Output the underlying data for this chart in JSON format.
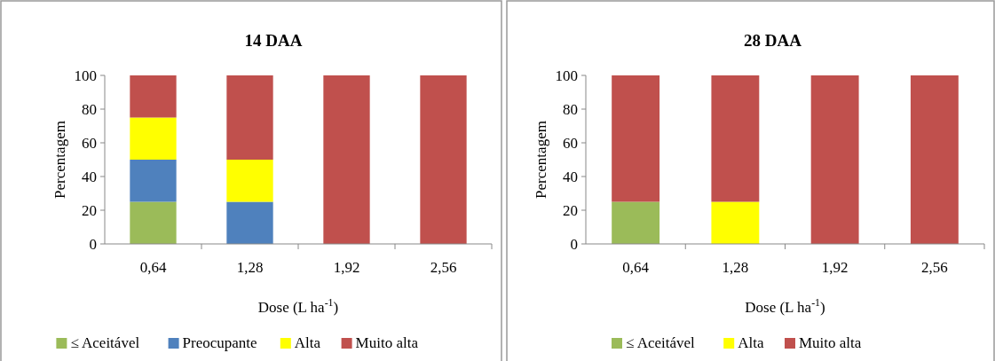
{
  "chart_data": [
    {
      "type": "bar",
      "title": "14 DAA",
      "categories": [
        "0,64",
        "1,28",
        "1,92",
        "2,56"
      ],
      "stacked": true,
      "xlabel": "Dose (L ha$^{-1}$)",
      "ylabel": "Percentagem",
      "ylim": [
        0,
        100
      ],
      "yticks": [
        0,
        20,
        40,
        60,
        80,
        100
      ],
      "legend": "bottom",
      "series": [
        {
          "name": "≤ Aceitável",
          "color": "#9bbb59",
          "values": [
            25,
            0,
            0,
            0
          ]
        },
        {
          "name": "Preocupante",
          "color": "#4f81bd",
          "values": [
            25,
            25,
            0,
            0
          ]
        },
        {
          "name": "Alta",
          "color": "#ffff00",
          "values": [
            25,
            25,
            0,
            0
          ]
        },
        {
          "name": "Muito alta",
          "color": "#c0504d",
          "values": [
            25,
            50,
            100,
            100
          ]
        }
      ]
    },
    {
      "type": "bar",
      "title": "28 DAA",
      "categories": [
        "0,64",
        "1,28",
        "1,92",
        "2,56"
      ],
      "stacked": true,
      "xlabel": "Dose (L ha$^{-1}$)",
      "ylabel": "Percentagem",
      "ylim": [
        0,
        100
      ],
      "yticks": [
        0,
        20,
        40,
        60,
        80,
        100
      ],
      "legend": "bottom",
      "series": [
        {
          "name": "≤ Aceitável",
          "color": "#9bbb59",
          "values": [
            25,
            0,
            0,
            0
          ]
        },
        {
          "name": "Alta",
          "color": "#ffff00",
          "values": [
            0,
            25,
            0,
            0
          ]
        },
        {
          "name": "Muito alta",
          "color": "#c0504d",
          "values": [
            75,
            75,
            100,
            100
          ]
        }
      ]
    }
  ]
}
